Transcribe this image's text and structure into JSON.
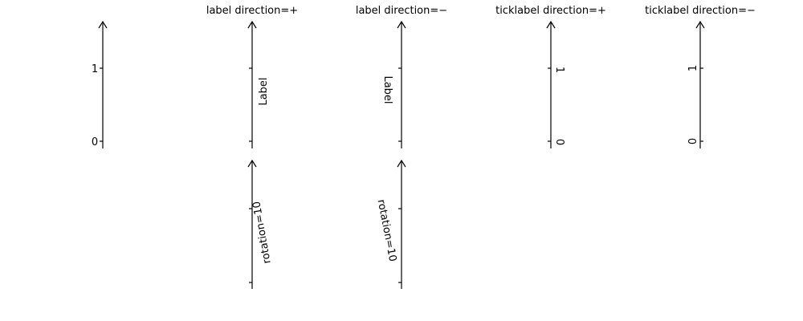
{
  "panels": [
    {
      "title": "",
      "ticklabels": [
        "0",
        "1"
      ],
      "label": ""
    },
    {
      "title": "label direction=+",
      "label": "Label"
    },
    {
      "title": "label direction=−",
      "label": "Label"
    },
    {
      "title": "ticklabel direction=+",
      "ticklabels": [
        "0",
        "1"
      ]
    },
    {
      "title": "ticklabel direction=−",
      "ticklabels": [
        "0",
        "1"
      ]
    },
    {
      "title": "",
      "label": "rotation=10"
    },
    {
      "title": "",
      "label": "rotation=10"
    }
  ],
  "colors": {
    "axis": "#000000",
    "background": "#ffffff"
  }
}
